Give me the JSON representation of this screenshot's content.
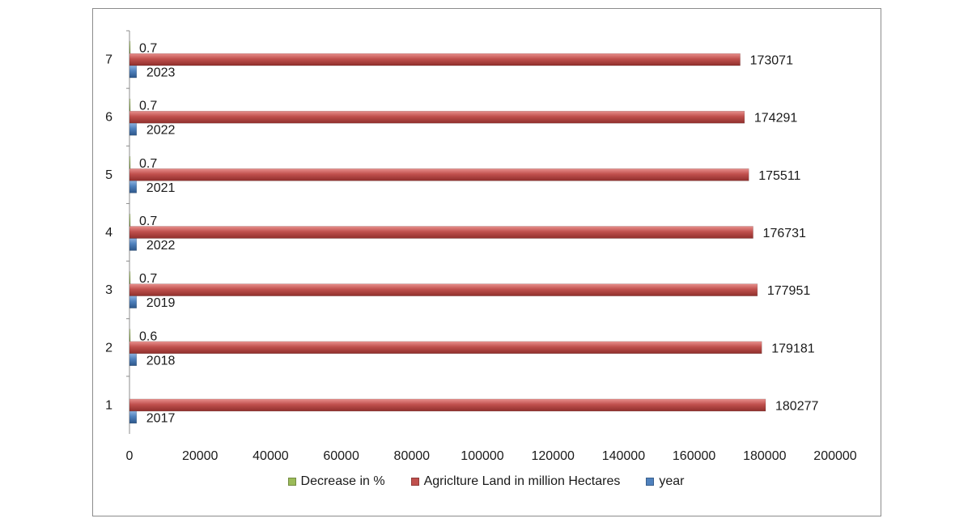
{
  "chart_data": {
    "type": "bar",
    "orientation": "horizontal",
    "categories": [
      "1",
      "2",
      "3",
      "4",
      "5",
      "6",
      "7"
    ],
    "series": [
      {
        "name": "Decrease in %",
        "values": [
          null,
          0.6,
          0.7,
          0.7,
          0.7,
          0.7,
          0.7
        ],
        "color": "#9bbb59",
        "labels": [
          "",
          "0.6",
          "0.7",
          "0.7",
          "0.7",
          "0.7",
          "0.7"
        ]
      },
      {
        "name": "Agriclture Land in million Hectares",
        "values": [
          180277,
          179181,
          177951,
          176731,
          175511,
          174291,
          173071
        ],
        "color": "#c0504d",
        "labels": [
          "180277",
          "179181",
          "177951",
          "176731",
          "175511",
          "174291",
          "173071"
        ]
      },
      {
        "name": "year",
        "values": [
          2017,
          2018,
          2019,
          2022,
          2021,
          2022,
          2023
        ],
        "color": "#4f81bd",
        "labels": [
          "2017",
          "2018",
          "2019",
          "2022",
          "2021",
          "2022",
          "2023"
        ]
      }
    ],
    "x_ticks": [
      "0",
      "20000",
      "40000",
      "60000",
      "80000",
      "100000",
      "120000",
      "140000",
      "160000",
      "180000",
      "200000"
    ],
    "xlim": [
      0,
      200000
    ],
    "xlabel": "",
    "ylabel": "",
    "title": "",
    "grid": false,
    "legend_position": "bottom"
  }
}
